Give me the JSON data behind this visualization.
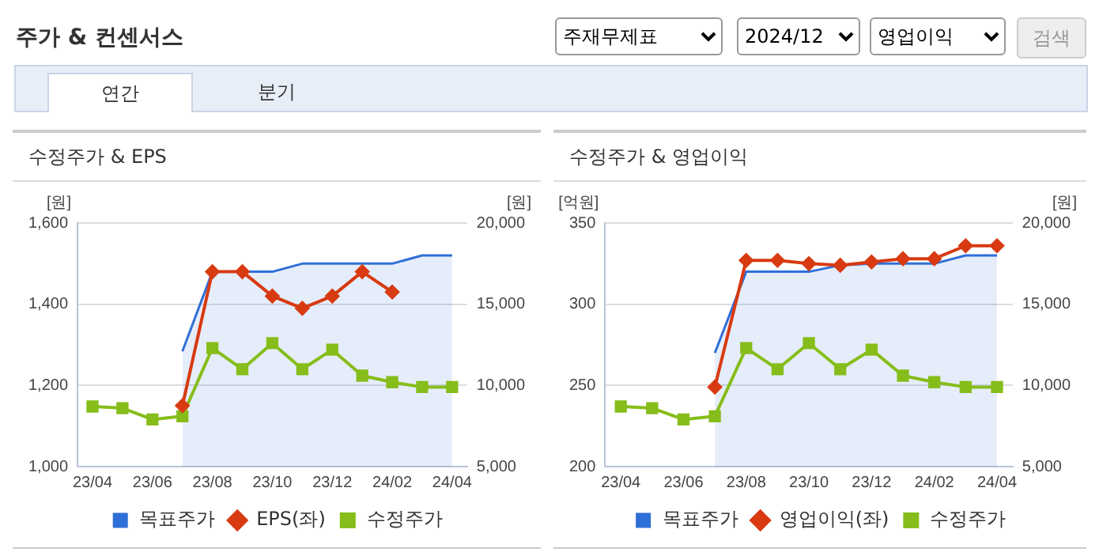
{
  "chart_data": [
    {
      "type": "line",
      "title": "수정주가 & EPS",
      "ylabel": "[원]",
      "y2label": "[원]",
      "annotations": [
        "주가 & 컨센서스",
        "주재무제표",
        "2024/12",
        "영업이익",
        "검색",
        "연간",
        "분기"
      ],
      "categories": [
        "23/04",
        null,
        "23/06",
        null,
        "23/08",
        null,
        "23/10",
        null,
        "23/12",
        null,
        "24/02",
        null,
        "24/04"
      ],
      "series": [
        {
          "name": "목표주가",
          "type": "area",
          "axis": "y2",
          "color": "#2f6fd8",
          "marker": "none",
          "values": [
            null,
            null,
            null,
            12100,
            17000,
            17000,
            17000,
            17500,
            17500,
            17500,
            17500,
            18000,
            18000
          ]
        },
        {
          "name": "EPS(좌)",
          "color": "#d83a12",
          "marker": "diamond",
          "values": [
            null,
            null,
            null,
            1150,
            1480,
            1480,
            1420,
            1390,
            1420,
            1480,
            1430,
            null,
            null
          ]
        },
        {
          "name": "수정주가",
          "axis": "y2",
          "color": "#86bd1a",
          "marker": "square",
          "values": [
            8700,
            8600,
            7900,
            8100,
            12300,
            11000,
            12600,
            11000,
            12200,
            10600,
            10200,
            9900,
            9900
          ]
        }
      ],
      "ylim": [
        1000,
        1600
      ],
      "yticks": [
        {
          "value": 1000,
          "label": "1,000"
        },
        {
          "value": 1200,
          "label": "1,200"
        },
        {
          "value": 1400,
          "label": "1,400"
        },
        {
          "value": 1600,
          "label": "1,600"
        }
      ],
      "y2lim": [
        5000,
        20000
      ],
      "y2ticks": [
        {
          "value": 5000,
          "label": "5,000"
        },
        {
          "value": 10000,
          "label": "10,000"
        },
        {
          "value": 15000,
          "label": "15,000"
        },
        {
          "value": 20000,
          "label": "20,000"
        }
      ],
      "grid": "y",
      "legend": "bottom"
    },
    {
      "type": "line",
      "title": "수정주가 & 영업이익",
      "ylabel": "[억원]",
      "y2label": "[원]",
      "categories": [
        "23/04",
        null,
        "23/06",
        null,
        "23/08",
        null,
        "23/10",
        null,
        "23/12",
        null,
        "24/02",
        null,
        "24/04"
      ],
      "series": [
        {
          "name": "목표주가",
          "type": "area",
          "axis": "y2",
          "color": "#2f6fd8",
          "marker": "none",
          "values": [
            null,
            null,
            null,
            12000,
            17000,
            17000,
            17000,
            17400,
            17500,
            17500,
            17500,
            18000,
            18000
          ]
        },
        {
          "name": "영업이익(좌)",
          "color": "#d83a12",
          "marker": "diamond",
          "values": [
            null,
            null,
            null,
            249,
            327,
            327,
            325,
            324,
            326,
            328,
            328,
            336,
            336
          ]
        },
        {
          "name": "수정주가",
          "axis": "y2",
          "color": "#86bd1a",
          "marker": "square",
          "values": [
            8700,
            8600,
            7900,
            8100,
            12300,
            11000,
            12600,
            11000,
            12200,
            10600,
            10200,
            9900,
            9900
          ]
        }
      ],
      "ylim": [
        200,
        350
      ],
      "yticks": [
        200,
        250,
        300,
        350
      ],
      "y2lim": [
        5000,
        20000
      ],
      "y2ticks": [
        {
          "value": 5000,
          "label": "5,000"
        },
        {
          "value": 10000,
          "label": "10,000"
        },
        {
          "value": 15000,
          "label": "15,000"
        },
        {
          "value": 20000,
          "label": "20,000"
        }
      ],
      "grid": "y",
      "legend": "bottom"
    }
  ]
}
